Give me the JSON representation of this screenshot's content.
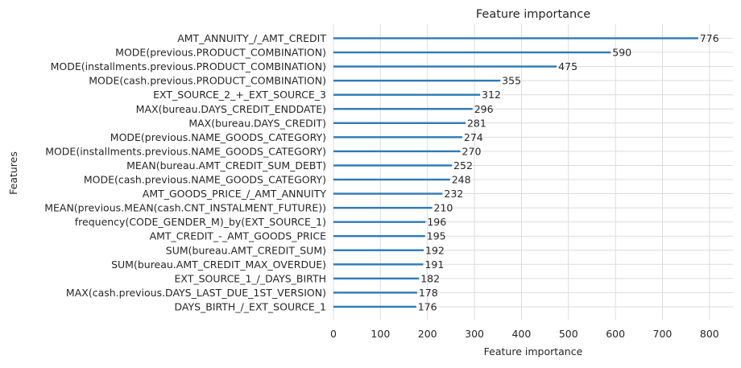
{
  "chart_data": {
    "type": "bar",
    "orientation": "horizontal",
    "title": "Feature importance",
    "xlabel": "Feature importance",
    "ylabel": "Features",
    "xlim": [
      0,
      850
    ],
    "xticks": [
      0,
      100,
      200,
      300,
      400,
      500,
      600,
      700,
      800
    ],
    "grid": true,
    "bar_color": "#2f7ab6",
    "categories": [
      "AMT_ANNUITY_/_AMT_CREDIT",
      "MODE(previous.PRODUCT_COMBINATION)",
      "MODE(installments.previous.PRODUCT_COMBINATION)",
      "MODE(cash.previous.PRODUCT_COMBINATION)",
      "EXT_SOURCE_2_+_EXT_SOURCE_3",
      "MAX(bureau.DAYS_CREDIT_ENDDATE)",
      "MAX(bureau.DAYS_CREDIT)",
      "MODE(previous.NAME_GOODS_CATEGORY)",
      "MODE(installments.previous.NAME_GOODS_CATEGORY)",
      "MEAN(bureau.AMT_CREDIT_SUM_DEBT)",
      "MODE(cash.previous.NAME_GOODS_CATEGORY)",
      "AMT_GOODS_PRICE_/_AMT_ANNUITY",
      "MEAN(previous.MEAN(cash.CNT_INSTALMENT_FUTURE))",
      "frequency(CODE_GENDER_M)_by(EXT_SOURCE_1)",
      "AMT_CREDIT_-_AMT_GOODS_PRICE",
      "SUM(bureau.AMT_CREDIT_SUM)",
      "SUM(bureau.AMT_CREDIT_MAX_OVERDUE)",
      "EXT_SOURCE_1_/_DAYS_BIRTH",
      "MAX(cash.previous.DAYS_LAST_DUE_1ST_VERSION)",
      "DAYS_BIRTH_/_EXT_SOURCE_1"
    ],
    "values": [
      776,
      590,
      475,
      355,
      312,
      296,
      281,
      274,
      270,
      252,
      248,
      232,
      210,
      196,
      195,
      192,
      191,
      182,
      178,
      176
    ]
  }
}
